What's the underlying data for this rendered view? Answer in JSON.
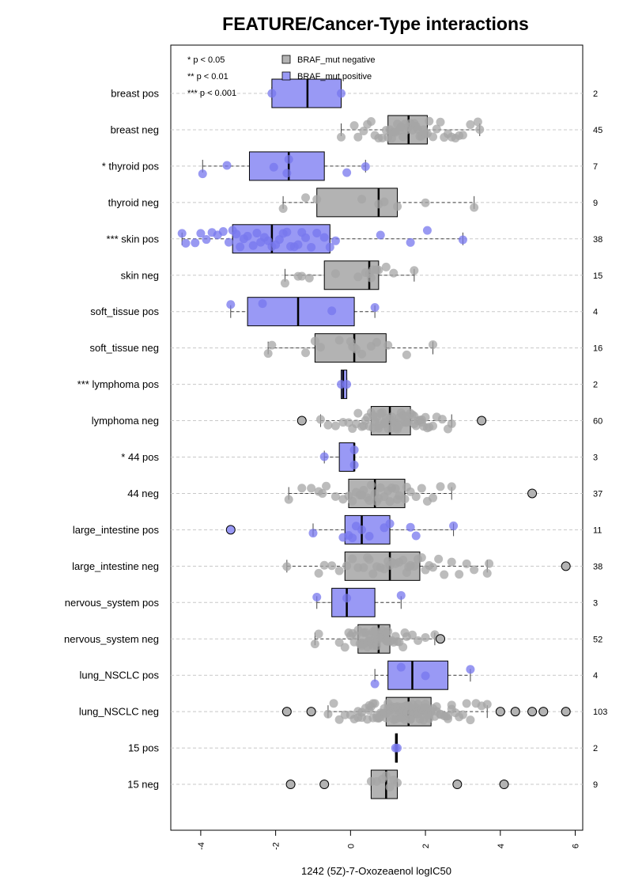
{
  "chart_data": {
    "type": "boxplot",
    "title": "FEATURE/Cancer-Type interactions",
    "xlabel": "1242 (5Z)-7-Oxozeaenol logIC50",
    "xlim": [
      -4.8,
      6.2
    ],
    "xticks": [
      "-4",
      "-2",
      "0",
      "2",
      "4",
      "6"
    ],
    "xtick_values": [
      -4,
      -2,
      0,
      2,
      4,
      6
    ],
    "grid": "horizontal dashed",
    "colors": {
      "negative": "#b3b3b3",
      "positive": "#9999f5",
      "negative_points": "#a6a6a6",
      "positive_points": "#7777ee"
    },
    "legend": {
      "placement": "top",
      "significance": [
        "* p < 0.05",
        "** p < 0.01",
        "*** p < 0.001"
      ],
      "entries": [
        {
          "label": "BRAF_mut negative",
          "color": "#b3b3b3"
        },
        {
          "label": "BRAF_mut positive",
          "color": "#9999f5"
        }
      ]
    },
    "rows": [
      {
        "label": "breast pos",
        "n": "2",
        "group": "positive",
        "q1": -2.1,
        "median": -1.15,
        "q3": -0.25,
        "wlo": -2.1,
        "whi": -0.25,
        "outliers": [],
        "points": [
          -2.1,
          -0.25
        ]
      },
      {
        "label": "breast neg",
        "n": "45",
        "group": "negative",
        "q1": 1.0,
        "median": 1.55,
        "q3": 2.05,
        "wlo": -0.25,
        "whi": 3.45,
        "outliers": [],
        "points": [
          -0.25,
          0.1,
          0.2,
          0.35,
          0.45,
          0.55,
          0.65,
          0.75,
          0.85,
          0.95,
          1.0,
          1.05,
          1.1,
          1.15,
          1.2,
          1.25,
          1.3,
          1.35,
          1.4,
          1.45,
          1.5,
          1.55,
          1.6,
          1.65,
          1.7,
          1.75,
          1.8,
          1.85,
          1.9,
          1.95,
          2.0,
          2.05,
          2.1,
          2.2,
          2.3,
          2.4,
          2.5,
          2.6,
          2.7,
          2.8,
          2.9,
          3.0,
          3.2,
          3.4,
          3.45
        ]
      },
      {
        "label": "* thyroid pos",
        "n": "7",
        "group": "positive",
        "q1": -2.7,
        "median": -1.65,
        "q3": -0.7,
        "wlo": -3.95,
        "whi": 0.4,
        "outliers": [],
        "points": [
          -3.95,
          -3.3,
          -2.05,
          -1.7,
          -1.65,
          -0.1,
          0.4
        ]
      },
      {
        "label": "thyroid neg",
        "n": "9",
        "group": "negative",
        "q1": -0.9,
        "median": 0.75,
        "q3": 1.25,
        "wlo": -1.8,
        "whi": 3.3,
        "outliers": [],
        "points": [
          -1.8,
          -1.2,
          -0.9,
          0.3,
          0.75,
          0.9,
          1.25,
          2.0,
          3.3
        ]
      },
      {
        "label": "*** skin pos",
        "n": "38",
        "group": "positive",
        "q1": -3.15,
        "median": -2.1,
        "q3": -0.55,
        "wlo": -4.5,
        "whi": 3.0,
        "outliers": [],
        "points": [
          -4.5,
          -4.4,
          -4.15,
          -4.0,
          -3.85,
          -3.7,
          -3.55,
          -3.4,
          -3.25,
          -3.15,
          -3.05,
          -2.95,
          -2.85,
          -2.75,
          -2.6,
          -2.5,
          -2.4,
          -2.3,
          -2.2,
          -2.1,
          -2.0,
          -1.9,
          -1.8,
          -1.7,
          -1.6,
          -1.5,
          -1.4,
          -1.3,
          -1.2,
          -1.05,
          -0.9,
          -0.7,
          -0.55,
          -0.4,
          0.8,
          1.6,
          2.05,
          3.0
        ]
      },
      {
        "label": "skin neg",
        "n": "15",
        "group": "negative",
        "q1": -0.7,
        "median": 0.5,
        "q3": 0.75,
        "wlo": -1.75,
        "whi": 1.7,
        "outliers": [],
        "points": [
          -1.75,
          -1.4,
          -1.3,
          -1.1,
          -0.4,
          0.2,
          0.4,
          0.5,
          0.55,
          0.6,
          0.7,
          0.75,
          0.95,
          1.15,
          1.7
        ]
      },
      {
        "label": "soft_tissue pos",
        "n": "4",
        "group": "positive",
        "q1": -2.75,
        "median": -1.4,
        "q3": 0.1,
        "wlo": -3.2,
        "whi": 0.65,
        "outliers": [],
        "points": [
          -3.2,
          -2.35,
          -0.5,
          0.65
        ]
      },
      {
        "label": "soft_tissue neg",
        "n": "16",
        "group": "negative",
        "q1": -0.95,
        "median": 0.1,
        "q3": 0.95,
        "wlo": -2.2,
        "whi": 2.2,
        "outliers": [],
        "points": [
          -2.2,
          -2.1,
          -1.2,
          -0.95,
          -0.8,
          -0.3,
          0.0,
          0.05,
          0.1,
          0.15,
          0.3,
          0.55,
          0.7,
          1.0,
          1.5,
          2.2
        ]
      },
      {
        "label": "*** lymphoma pos",
        "n": "2",
        "group": "positive",
        "q1": -0.25,
        "median": -0.2,
        "q3": -0.1,
        "wlo": -0.25,
        "whi": -0.1,
        "outliers": [],
        "points": [
          -0.25,
          -0.1
        ]
      },
      {
        "label": "lymphoma neg",
        "n": "60",
        "group": "negative",
        "q1": 0.55,
        "median": 1.05,
        "q3": 1.6,
        "wlo": -0.8,
        "whi": 2.7,
        "outliers": [
          -1.3,
          3.5
        ],
        "points": [
          -0.8,
          -0.6,
          -0.4,
          -0.2,
          -0.05,
          0.05,
          0.15,
          0.2,
          0.3,
          0.35,
          0.4,
          0.45,
          0.5,
          0.55,
          0.6,
          0.65,
          0.7,
          0.75,
          0.8,
          0.85,
          0.9,
          0.95,
          1.0,
          1.05,
          1.1,
          1.15,
          1.2,
          1.25,
          1.3,
          1.35,
          1.4,
          1.45,
          1.5,
          1.55,
          1.6,
          1.65,
          1.7,
          1.75,
          1.8,
          1.85,
          1.9,
          1.95,
          2.0,
          2.05,
          2.1,
          2.2,
          2.3,
          2.45,
          2.6,
          2.7,
          0.6,
          0.9,
          1.1,
          1.3,
          1.5,
          1.7,
          1.9,
          0.75,
          1.25
        ]
      },
      {
        "label": "* 44 pos",
        "n": "3",
        "group": "positive",
        "q1": -0.3,
        "median": 0.1,
        "q3": 0.1,
        "wlo": -0.7,
        "whi": 0.1,
        "outliers": [],
        "points": [
          -0.7,
          0.1,
          0.1
        ]
      },
      {
        "label": "44 neg",
        "n": "37",
        "group": "negative",
        "q1": -0.05,
        "median": 0.65,
        "q3": 1.45,
        "wlo": -1.65,
        "whi": 2.7,
        "outliers": [
          4.85
        ],
        "points": [
          -1.65,
          -1.3,
          -1.05,
          -0.85,
          -0.65,
          -0.4,
          -0.2,
          -0.05,
          0.05,
          0.15,
          0.25,
          0.35,
          0.45,
          0.55,
          0.65,
          0.7,
          0.8,
          0.9,
          1.0,
          1.1,
          1.2,
          1.3,
          1.45,
          1.6,
          1.75,
          1.9,
          2.05,
          2.2,
          2.4,
          2.7,
          0.5,
          0.75,
          1.05,
          1.25,
          -0.75,
          0.3,
          1.5
        ]
      },
      {
        "label": "large_intestine pos",
        "n": "11",
        "group": "positive",
        "q1": -0.15,
        "median": 0.3,
        "q3": 1.05,
        "wlo": -1.0,
        "whi": 2.75,
        "outliers": [
          -3.2
        ],
        "points": [
          -1.0,
          -0.2,
          -0.05,
          0.05,
          0.15,
          0.3,
          0.5,
          0.9,
          1.05,
          1.6,
          1.75,
          2.75
        ]
      },
      {
        "label": "large_intestine neg",
        "n": "38",
        "group": "negative",
        "q1": -0.15,
        "median": 1.05,
        "q3": 1.85,
        "wlo": -1.7,
        "whi": 3.65,
        "outliers": [
          5.75
        ],
        "points": [
          -1.7,
          -0.85,
          -0.7,
          -0.5,
          -0.3,
          -0.1,
          0.05,
          0.2,
          0.35,
          0.5,
          0.6,
          0.7,
          0.8,
          0.9,
          1.0,
          1.05,
          1.1,
          1.2,
          1.3,
          1.4,
          1.5,
          1.6,
          1.7,
          1.8,
          1.9,
          2.0,
          2.1,
          2.2,
          2.35,
          2.5,
          2.7,
          2.9,
          3.1,
          3.3,
          3.65,
          3.7,
          0.45,
          1.55
        ]
      },
      {
        "label": "nervous_system pos",
        "n": "3",
        "group": "positive",
        "q1": -0.5,
        "median": -0.1,
        "q3": 0.65,
        "wlo": -0.9,
        "whi": 1.35,
        "outliers": [],
        "points": [
          -0.9,
          -0.1,
          1.35
        ]
      },
      {
        "label": "nervous_system neg",
        "n": "52",
        "group": "negative",
        "q1": 0.2,
        "median": 0.75,
        "q3": 1.05,
        "wlo": -0.95,
        "whi": 2.25,
        "outliers": [
          2.4
        ],
        "points": [
          -0.95,
          -0.85,
          -0.3,
          -0.15,
          -0.05,
          0.05,
          0.15,
          0.2,
          0.25,
          0.3,
          0.35,
          0.4,
          0.45,
          0.5,
          0.55,
          0.6,
          0.65,
          0.7,
          0.75,
          0.8,
          0.85,
          0.9,
          0.95,
          1.0,
          1.05,
          1.1,
          1.2,
          1.3,
          1.4,
          1.5,
          1.65,
          1.8,
          2.0,
          2.25,
          0.1,
          0.3,
          0.45,
          0.6,
          0.72,
          0.85,
          0.98,
          1.15,
          0.5,
          0.75,
          0.0,
          0.35,
          0.65,
          0.95,
          1.25,
          1.45,
          0.8,
          0.7
        ]
      },
      {
        "label": "lung_NSCLC pos",
        "n": "4",
        "group": "positive",
        "q1": 1.0,
        "median": 1.65,
        "q3": 2.6,
        "wlo": 0.65,
        "whi": 3.2,
        "outliers": [],
        "points": [
          0.65,
          1.35,
          2.0,
          3.2
        ]
      },
      {
        "label": "lung_NSCLC neg",
        "n": "103",
        "group": "negative",
        "q1": 0.95,
        "median": 1.55,
        "q3": 2.15,
        "wlo": -0.6,
        "whi": 3.65,
        "outliers": [
          -1.7,
          -1.05,
          4.0,
          4.4,
          4.85,
          5.15,
          5.75
        ],
        "points": [
          -0.6,
          -0.45,
          -0.3,
          -0.15,
          0.0,
          0.1,
          0.2,
          0.3,
          0.4,
          0.5,
          0.55,
          0.6,
          0.65,
          0.7,
          0.75,
          0.8,
          0.85,
          0.9,
          0.95,
          1.0,
          1.05,
          1.1,
          1.15,
          1.2,
          1.25,
          1.3,
          1.35,
          1.4,
          1.45,
          1.5,
          1.55,
          1.6,
          1.65,
          1.7,
          1.75,
          1.8,
          1.85,
          1.9,
          1.95,
          2.0,
          2.05,
          2.1,
          2.15,
          2.2,
          2.3,
          2.4,
          2.5,
          2.6,
          2.7,
          2.8,
          2.9,
          3.0,
          3.1,
          3.2,
          3.35,
          3.5,
          3.65,
          0.3,
          0.6,
          0.9,
          1.2,
          1.5,
          1.8,
          2.1,
          2.4,
          2.7,
          0.45,
          0.75,
          1.05,
          1.35,
          1.65,
          1.95,
          2.25,
          2.55,
          0.2,
          0.5,
          0.8,
          1.1,
          1.4,
          1.7,
          2.0,
          2.3,
          2.6,
          1.0,
          1.3,
          1.6,
          1.9,
          0.7,
          1.15,
          1.45,
          1.75,
          2.05,
          0.95,
          1.25,
          1.55,
          1.85,
          2.15,
          1.6,
          1.4,
          1.2,
          1.8,
          1.5,
          1.35
        ]
      },
      {
        "label": "15 pos",
        "n": "2",
        "group": "positive",
        "q1": 1.2,
        "median": 1.22,
        "q3": 1.25,
        "wlo": 1.2,
        "whi": 1.25,
        "outliers": [],
        "points": [
          1.2,
          1.25
        ]
      },
      {
        "label": "15 neg",
        "n": "9",
        "group": "negative",
        "q1": 0.55,
        "median": 0.95,
        "q3": 1.25,
        "wlo": 0.55,
        "whi": 1.25,
        "outliers": [
          -1.6,
          -0.7,
          2.85,
          4.1
        ],
        "points": [
          0.55,
          0.7,
          0.85,
          0.95,
          1.05,
          1.15,
          1.25
        ]
      }
    ]
  }
}
